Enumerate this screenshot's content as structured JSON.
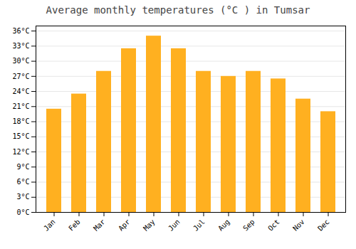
{
  "chart_data": {
    "type": "bar",
    "title": "Average monthly temperatures (°C ) in Tumsar",
    "categories": [
      "Jan",
      "Feb",
      "Mar",
      "Apr",
      "May",
      "Jun",
      "Jul",
      "Aug",
      "Sep",
      "Oct",
      "Nov",
      "Dec"
    ],
    "values": [
      20.5,
      23.5,
      28.0,
      32.5,
      35.0,
      32.5,
      28.0,
      27.0,
      28.0,
      26.5,
      22.5,
      20.0
    ],
    "color": "#FFB020",
    "ylim": [
      0,
      37
    ],
    "yticks": [
      {
        "value": 0,
        "label": "0°C"
      },
      {
        "value": 3,
        "label": "3°C"
      },
      {
        "value": 6,
        "label": "6°C"
      },
      {
        "value": 9,
        "label": "9°C"
      },
      {
        "value": 12,
        "label": "12°C"
      },
      {
        "value": 15,
        "label": "15°C"
      },
      {
        "value": 18,
        "label": "18°C"
      },
      {
        "value": 21,
        "label": "21°C"
      },
      {
        "value": 24,
        "label": "24°C"
      },
      {
        "value": 27,
        "label": "27°C"
      },
      {
        "value": 30,
        "label": "30°C"
      },
      {
        "value": 33,
        "label": "33°C"
      },
      {
        "value": 36,
        "label": "36°C"
      }
    ],
    "grid": true
  }
}
